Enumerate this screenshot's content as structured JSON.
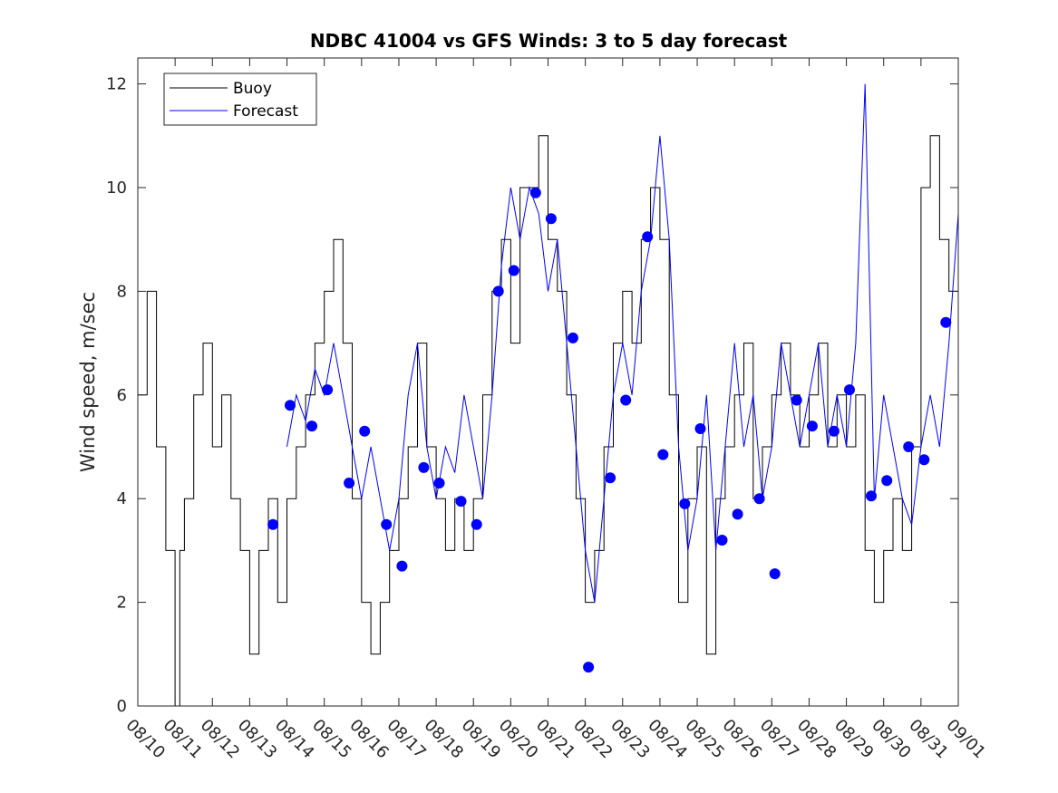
{
  "chart_data": {
    "type": "line",
    "title": "NDBC 41004 vs GFS Winds: 3 to 5 day forecast",
    "xlabel": "",
    "ylabel": "Wind speed, m/sec",
    "x_unit": "date (MM/DD)",
    "xlim": [
      "08/10",
      "09/01"
    ],
    "ylim": [
      0,
      12.5
    ],
    "x_ticks": [
      "08/10",
      "08/11",
      "08/12",
      "08/13",
      "08/14",
      "08/15",
      "08/16",
      "08/17",
      "08/18",
      "08/19",
      "08/20",
      "08/21",
      "08/22",
      "08/23",
      "08/24",
      "08/25",
      "08/26",
      "08/27",
      "08/28",
      "08/29",
      "08/30",
      "08/31",
      "09/01"
    ],
    "y_ticks": [
      0,
      2,
      4,
      6,
      8,
      10,
      12
    ],
    "grid": false,
    "legend": {
      "placement": "top-left",
      "entries": [
        "Buoy",
        "Forecast"
      ]
    },
    "colors": {
      "buoy": "#000000",
      "forecast": "#0000ff",
      "markers": "#0000ff"
    },
    "series": [
      {
        "name": "Buoy",
        "style": "line",
        "points": [
          [
            "08/10 00:00",
            7
          ],
          [
            "08/10 06:00",
            6
          ],
          [
            "08/10 12:00",
            8
          ],
          [
            "08/10 18:00",
            5
          ],
          [
            "08/11 00:00",
            3
          ],
          [
            "08/11 03:00",
            0
          ],
          [
            "08/11 06:00",
            3
          ],
          [
            "08/11 12:00",
            4
          ],
          [
            "08/11 18:00",
            6
          ],
          [
            "08/12 00:00",
            7
          ],
          [
            "08/12 06:00",
            5
          ],
          [
            "08/12 12:00",
            6
          ],
          [
            "08/12 18:00",
            4
          ],
          [
            "08/13 00:00",
            3
          ],
          [
            "08/13 06:00",
            1
          ],
          [
            "08/13 12:00",
            3
          ],
          [
            "08/13 18:00",
            4
          ],
          [
            "08/14 00:00",
            2
          ],
          [
            "08/14 06:00",
            4
          ],
          [
            "08/14 12:00",
            5
          ],
          [
            "08/14 18:00",
            6
          ],
          [
            "08/15 00:00",
            7
          ],
          [
            "08/15 06:00",
            8
          ],
          [
            "08/15 12:00",
            9
          ],
          [
            "08/15 18:00",
            7
          ],
          [
            "08/16 00:00",
            4
          ],
          [
            "08/16 06:00",
            2
          ],
          [
            "08/16 12:00",
            1
          ],
          [
            "08/16 18:00",
            2
          ],
          [
            "08/17 00:00",
            3
          ],
          [
            "08/17 06:00",
            4
          ],
          [
            "08/17 12:00",
            5
          ],
          [
            "08/17 18:00",
            7
          ],
          [
            "08/18 00:00",
            5
          ],
          [
            "08/18 06:00",
            4
          ],
          [
            "08/18 12:00",
            3
          ],
          [
            "08/18 18:00",
            4
          ],
          [
            "08/19 00:00",
            3
          ],
          [
            "08/19 06:00",
            4
          ],
          [
            "08/19 12:00",
            6
          ],
          [
            "08/19 18:00",
            8
          ],
          [
            "08/20 00:00",
            9
          ],
          [
            "08/20 06:00",
            7
          ],
          [
            "08/20 12:00",
            10
          ],
          [
            "08/20 18:00",
            10
          ],
          [
            "08/21 00:00",
            11
          ],
          [
            "08/21 06:00",
            9
          ],
          [
            "08/21 12:00",
            8
          ],
          [
            "08/21 18:00",
            6
          ],
          [
            "08/22 00:00",
            4
          ],
          [
            "08/22 06:00",
            2
          ],
          [
            "08/22 12:00",
            3
          ],
          [
            "08/22 18:00",
            5
          ],
          [
            "08/23 00:00",
            7
          ],
          [
            "08/23 06:00",
            8
          ],
          [
            "08/23 12:00",
            7
          ],
          [
            "08/23 18:00",
            9
          ],
          [
            "08/24 00:00",
            10
          ],
          [
            "08/24 06:00",
            9
          ],
          [
            "08/24 12:00",
            6
          ],
          [
            "08/24 18:00",
            2
          ],
          [
            "08/25 00:00",
            4
          ],
          [
            "08/25 06:00",
            5
          ],
          [
            "08/25 12:00",
            1
          ],
          [
            "08/25 18:00",
            4
          ],
          [
            "08/26 00:00",
            5
          ],
          [
            "08/26 06:00",
            6
          ],
          [
            "08/26 12:00",
            7
          ],
          [
            "08/26 18:00",
            4
          ],
          [
            "08/27 00:00",
            5
          ],
          [
            "08/27 06:00",
            6
          ],
          [
            "08/27 12:00",
            7
          ],
          [
            "08/27 18:00",
            6
          ],
          [
            "08/28 00:00",
            5
          ],
          [
            "08/28 06:00",
            6
          ],
          [
            "08/28 12:00",
            7
          ],
          [
            "08/28 18:00",
            5
          ],
          [
            "08/29 00:00",
            6
          ],
          [
            "08/29 06:00",
            5
          ],
          [
            "08/29 12:00",
            6
          ],
          [
            "08/29 18:00",
            3
          ],
          [
            "08/30 00:00",
            2
          ],
          [
            "08/30 06:00",
            3
          ],
          [
            "08/30 12:00",
            4
          ],
          [
            "08/30 18:00",
            3
          ],
          [
            "08/31 00:00",
            5
          ],
          [
            "08/31 06:00",
            10
          ],
          [
            "08/31 12:00",
            11
          ],
          [
            "08/31 18:00",
            9
          ],
          [
            "09/01 00:00",
            8
          ]
        ]
      },
      {
        "name": "Forecast",
        "style": "line",
        "points": [
          [
            "08/14 00:00",
            5
          ],
          [
            "08/14 06:00",
            6
          ],
          [
            "08/14 12:00",
            5.5
          ],
          [
            "08/14 18:00",
            6.5
          ],
          [
            "08/15 00:00",
            6
          ],
          [
            "08/15 06:00",
            7
          ],
          [
            "08/15 12:00",
            6
          ],
          [
            "08/15 18:00",
            5
          ],
          [
            "08/16 00:00",
            4
          ],
          [
            "08/16 06:00",
            5
          ],
          [
            "08/16 12:00",
            4
          ],
          [
            "08/16 18:00",
            3
          ],
          [
            "08/17 00:00",
            4
          ],
          [
            "08/17 06:00",
            6
          ],
          [
            "08/17 12:00",
            7
          ],
          [
            "08/17 18:00",
            5
          ],
          [
            "08/18 00:00",
            4
          ],
          [
            "08/18 06:00",
            5
          ],
          [
            "08/18 12:00",
            4.5
          ],
          [
            "08/18 18:00",
            6
          ],
          [
            "08/19 00:00",
            5
          ],
          [
            "08/19 06:00",
            4
          ],
          [
            "08/19 12:00",
            6
          ],
          [
            "08/19 18:00",
            8.5
          ],
          [
            "08/20 00:00",
            10
          ],
          [
            "08/20 06:00",
            9
          ],
          [
            "08/20 12:00",
            10
          ],
          [
            "08/20 18:00",
            9.5
          ],
          [
            "08/21 00:00",
            8
          ],
          [
            "08/21 06:00",
            9
          ],
          [
            "08/21 12:00",
            7
          ],
          [
            "08/21 18:00",
            5
          ],
          [
            "08/22 00:00",
            3
          ],
          [
            "08/22 06:00",
            2
          ],
          [
            "08/22 12:00",
            4
          ],
          [
            "08/22 18:00",
            6
          ],
          [
            "08/23 00:00",
            7
          ],
          [
            "08/23 06:00",
            6
          ],
          [
            "08/23 12:00",
            8
          ],
          [
            "08/23 18:00",
            9
          ],
          [
            "08/24 00:00",
            11
          ],
          [
            "08/24 06:00",
            9
          ],
          [
            "08/24 12:00",
            5
          ],
          [
            "08/24 18:00",
            3
          ],
          [
            "08/25 00:00",
            4
          ],
          [
            "08/25 06:00",
            6
          ],
          [
            "08/25 12:00",
            3
          ],
          [
            "08/25 18:00",
            5
          ],
          [
            "08/26 00:00",
            7
          ],
          [
            "08/26 06:00",
            5
          ],
          [
            "08/26 12:00",
            6
          ],
          [
            "08/26 18:00",
            4
          ],
          [
            "08/27 00:00",
            5
          ],
          [
            "08/27 06:00",
            7
          ],
          [
            "08/27 12:00",
            6
          ],
          [
            "08/27 18:00",
            5
          ],
          [
            "08/28 00:00",
            6
          ],
          [
            "08/28 06:00",
            7
          ],
          [
            "08/28 12:00",
            5
          ],
          [
            "08/28 18:00",
            6
          ],
          [
            "08/29 00:00",
            5
          ],
          [
            "08/29 06:00",
            7
          ],
          [
            "08/29 12:00",
            12
          ],
          [
            "08/29 18:00",
            4
          ],
          [
            "08/30 00:00",
            6
          ],
          [
            "08/30 06:00",
            5
          ],
          [
            "08/30 12:00",
            4
          ],
          [
            "08/30 18:00",
            3.5
          ],
          [
            "08/31 00:00",
            5
          ],
          [
            "08/31 06:00",
            6
          ],
          [
            "08/31 12:00",
            5
          ],
          [
            "08/31 18:00",
            7
          ],
          [
            "09/01 00:00",
            9.5
          ]
        ]
      },
      {
        "style": "markers",
        "points": [
          [
            "08/13 15:00",
            3.5
          ],
          [
            "08/14 02:00",
            5.8
          ],
          [
            "08/14 16:00",
            5.4
          ],
          [
            "08/15 02:00",
            6.1
          ],
          [
            "08/15 16:00",
            4.3
          ],
          [
            "08/16 02:00",
            5.3
          ],
          [
            "08/16 16:00",
            3.5
          ],
          [
            "08/17 02:00",
            2.7
          ],
          [
            "08/17 16:00",
            4.6
          ],
          [
            "08/18 02:00",
            4.3
          ],
          [
            "08/18 16:00",
            3.95
          ],
          [
            "08/19 02:00",
            3.5
          ],
          [
            "08/19 16:00",
            8.0
          ],
          [
            "08/20 02:00",
            8.4
          ],
          [
            "08/20 16:00",
            9.9
          ],
          [
            "08/21 02:00",
            9.4
          ],
          [
            "08/21 16:00",
            7.1
          ],
          [
            "08/22 02:00",
            0.75
          ],
          [
            "08/22 16:00",
            4.4
          ],
          [
            "08/23 02:00",
            5.9
          ],
          [
            "08/23 16:00",
            9.05
          ],
          [
            "08/24 02:00",
            4.85
          ],
          [
            "08/24 16:00",
            3.9
          ],
          [
            "08/25 02:00",
            5.35
          ],
          [
            "08/25 16:00",
            3.2
          ],
          [
            "08/26 02:00",
            3.7
          ],
          [
            "08/26 16:00",
            4.0
          ],
          [
            "08/27 02:00",
            2.55
          ],
          [
            "08/27 16:00",
            5.9
          ],
          [
            "08/28 02:00",
            5.4
          ],
          [
            "08/28 16:00",
            5.3
          ],
          [
            "08/29 02:00",
            6.1
          ],
          [
            "08/29 16:00",
            4.05
          ],
          [
            "08/30 02:00",
            4.35
          ],
          [
            "08/30 16:00",
            5.0
          ],
          [
            "08/31 02:00",
            4.75
          ],
          [
            "08/31 16:00",
            7.4
          ]
        ]
      }
    ]
  }
}
